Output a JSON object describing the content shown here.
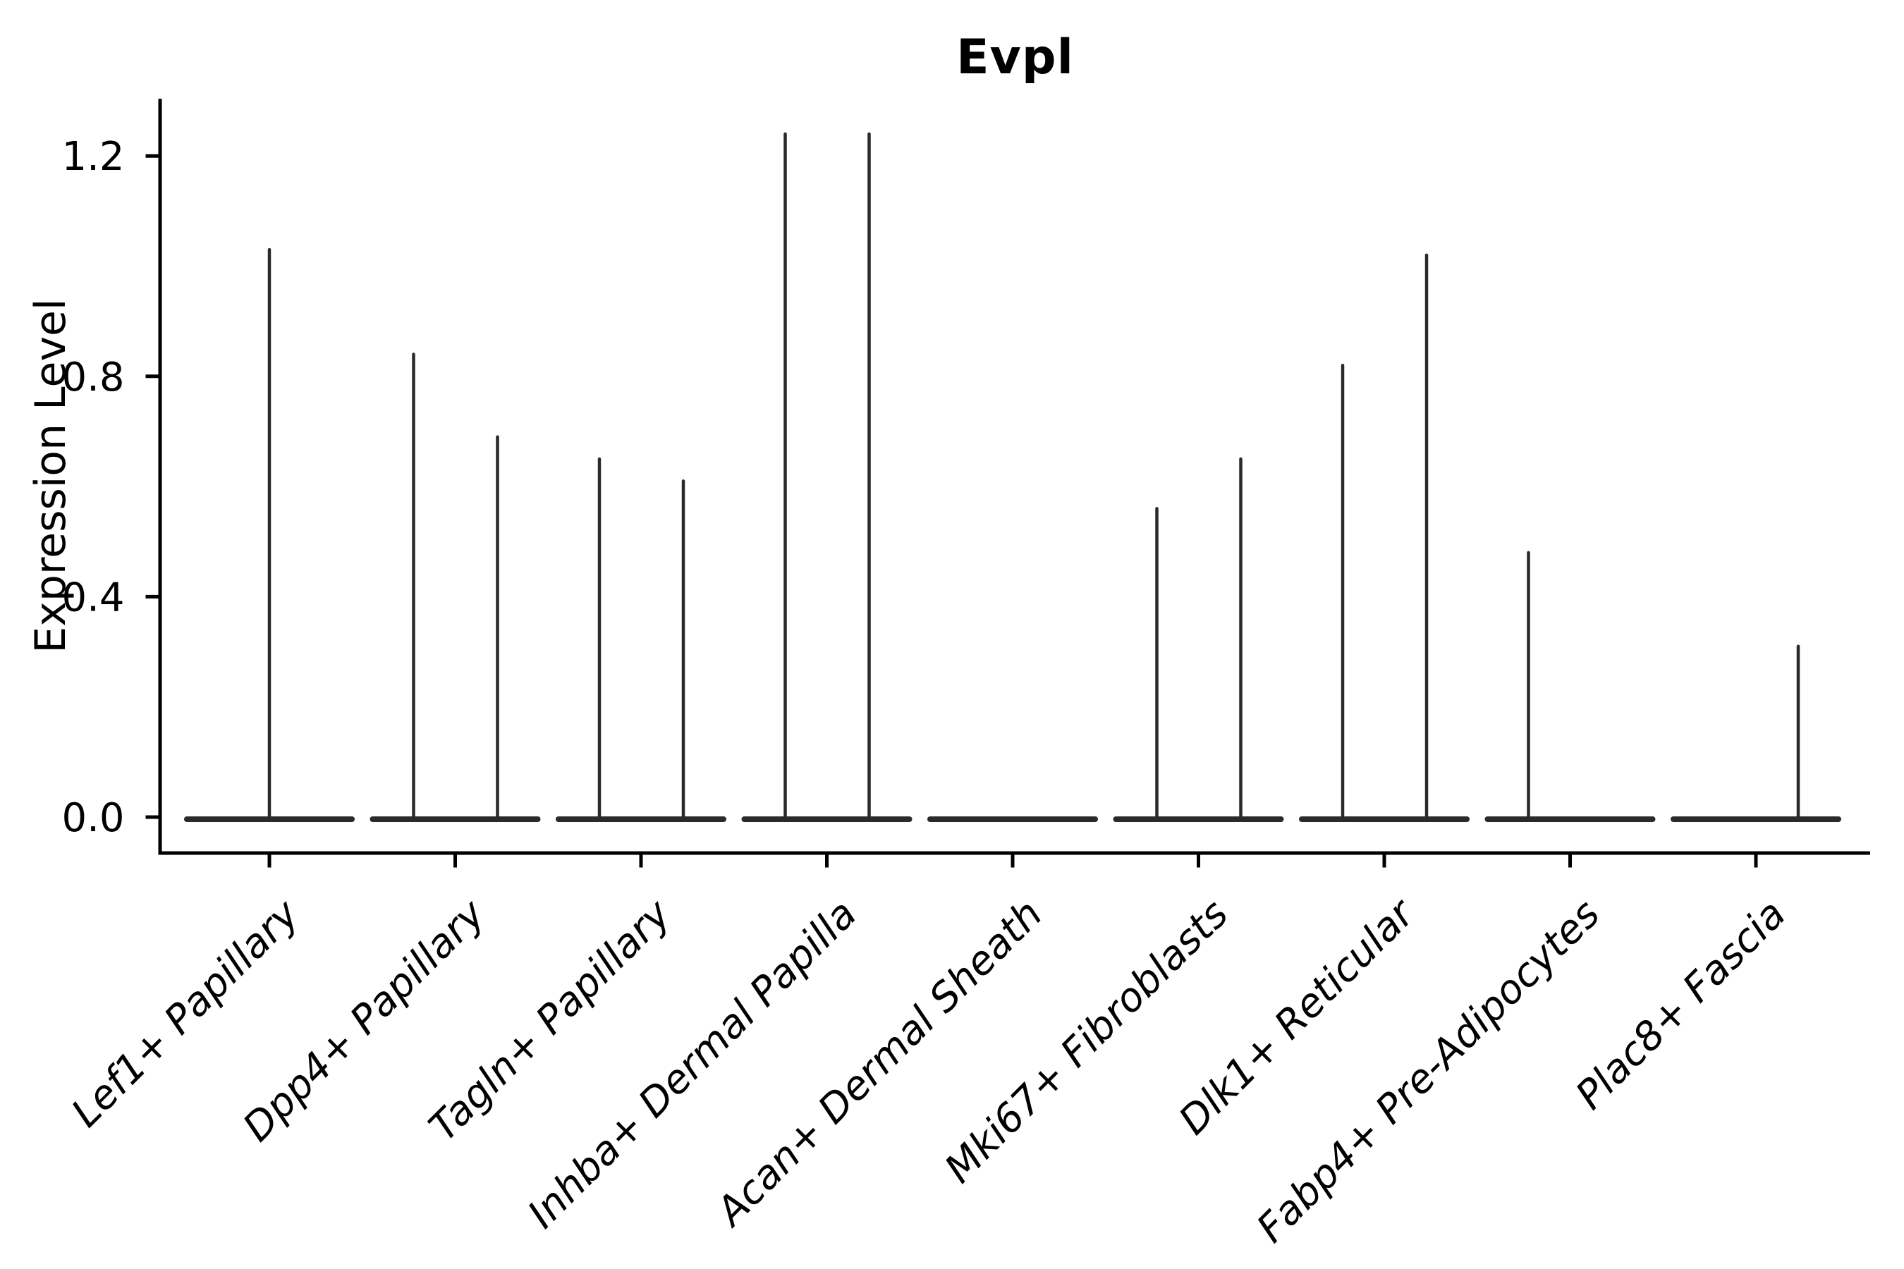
{
  "figure": {
    "title": "Evpl",
    "background_color": "#ffffff"
  },
  "chart_data": {
    "type": "violin",
    "title": "Evpl",
    "xlabel": "",
    "ylabel": "Expression Level",
    "ytick_labels": [
      "0.0",
      "0.4",
      "0.8",
      "1.2"
    ],
    "ytick_values": [
      0.0,
      0.4,
      0.8,
      1.2
    ],
    "ylim": [
      -0.07,
      1.3
    ],
    "grid": false,
    "legend_position": "none",
    "categories": [
      "Lef1+ Papillary",
      "Dpp4+ Papillary",
      "Tagln+ Papillary",
      "Inhba+ Dermal Papilla",
      "Acan+ Dermal Sheath",
      "Mki67+ Fibroblasts",
      "Dlk1+ Reticular",
      "Fabp4+ Pre-Adipocytes",
      "Plac8+ Fascia"
    ],
    "violins": [
      {
        "category": "Lef1+ Papillary",
        "has_flat_base": true,
        "spikes": [
          {
            "side": "center",
            "max": 1.03
          }
        ]
      },
      {
        "category": "Dpp4+ Papillary",
        "has_flat_base": true,
        "spikes": [
          {
            "side": "left",
            "max": 0.84
          },
          {
            "side": "right",
            "max": 0.69
          }
        ]
      },
      {
        "category": "Tagln+ Papillary",
        "has_flat_base": true,
        "spikes": [
          {
            "side": "left",
            "max": 0.65
          },
          {
            "side": "right",
            "max": 0.61
          }
        ]
      },
      {
        "category": "Inhba+ Dermal Papilla",
        "has_flat_base": true,
        "spikes": [
          {
            "side": "left",
            "max": 1.24
          },
          {
            "side": "right",
            "max": 1.24
          }
        ]
      },
      {
        "category": "Acan+ Dermal Sheath",
        "has_flat_base": true,
        "spikes": []
      },
      {
        "category": "Mki67+ Fibroblasts",
        "has_flat_base": true,
        "spikes": [
          {
            "side": "left",
            "max": 0.56
          },
          {
            "side": "right",
            "max": 0.65
          }
        ]
      },
      {
        "category": "Dlk1+ Reticular",
        "has_flat_base": true,
        "spikes": [
          {
            "side": "left",
            "max": 0.82
          },
          {
            "side": "right",
            "max": 1.02
          }
        ]
      },
      {
        "category": "Fabp4+ Pre-Adipocytes",
        "has_flat_base": true,
        "spikes": [
          {
            "side": "left",
            "max": 0.48
          }
        ]
      },
      {
        "category": "Plac8+ Fascia",
        "has_flat_base": true,
        "spikes": [
          {
            "side": "right",
            "max": 0.31
          }
        ]
      }
    ],
    "colors": {
      "violin": "#2a2a2a",
      "axis": "#000000",
      "text": "#000000",
      "background": "#ffffff"
    }
  }
}
